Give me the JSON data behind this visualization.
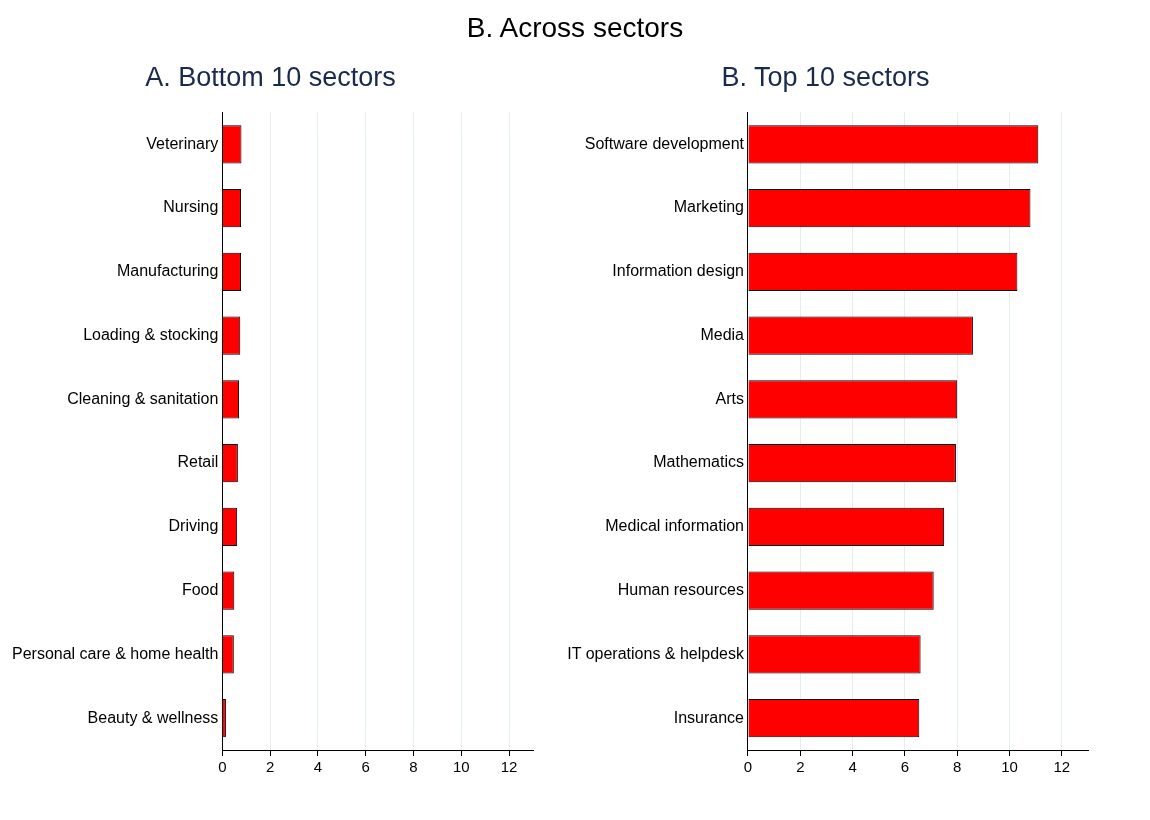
{
  "chart_data": [
    {
      "type": "bar",
      "orientation": "horizontal",
      "title": "A. Bottom 10 sectors",
      "annotations": [
        "B. Across sectors"
      ],
      "categories": [
        "Veterinary",
        "Nursing",
        "Manufacturing",
        "Loading & stocking",
        "Cleaning & sanitation",
        "Retail",
        "Driving",
        "Food",
        "Personal care & home health",
        "Beauty & wellness"
      ],
      "values": [
        0.8,
        0.78,
        0.78,
        0.75,
        0.7,
        0.65,
        0.62,
        0.5,
        0.48,
        0.15
      ],
      "color": "#ff0000",
      "xlim": [
        0,
        13
      ],
      "xticks": [
        0,
        2,
        4,
        6,
        8,
        10,
        12
      ],
      "grid": "x",
      "legend": false
    },
    {
      "type": "bar",
      "orientation": "horizontal",
      "title": "B. Top 10 sectors",
      "categories": [
        "Software development",
        "Marketing",
        "Information design",
        "Media",
        "Arts",
        "Mathematics",
        "Medical information",
        "Human resources",
        "IT operations & helpdesk",
        "Insurance"
      ],
      "values": [
        11.1,
        10.8,
        10.3,
        8.6,
        8.0,
        7.95,
        7.5,
        7.1,
        6.6,
        6.55
      ],
      "color": "#ff0000",
      "xlim": [
        0,
        13
      ],
      "xticks": [
        0,
        2,
        4,
        6,
        8,
        10,
        12
      ],
      "grid": "x",
      "legend": false
    }
  ]
}
